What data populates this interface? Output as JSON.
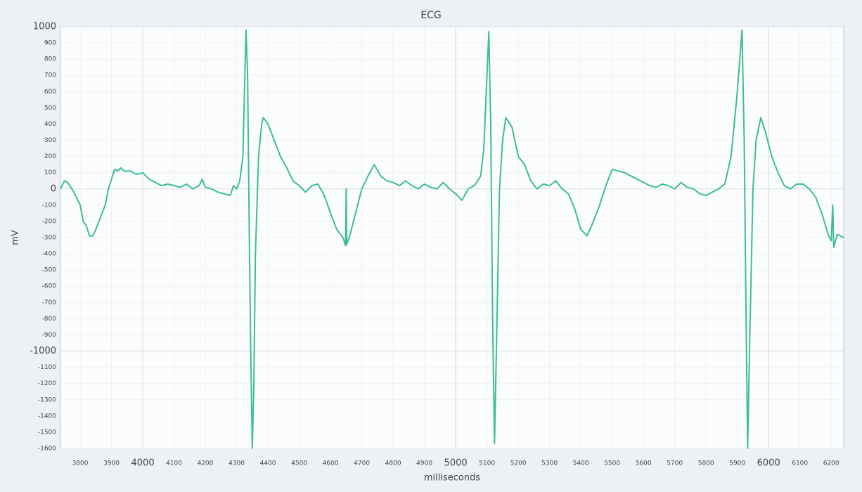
{
  "chart_data": {
    "type": "line",
    "title": "ECG",
    "x_label": "milliseconds",
    "y_label": "mV",
    "xlim": [
      3737,
      6240
    ],
    "ylim": [
      -1600,
      1000
    ],
    "grid": true,
    "xticks": [
      3800,
      3900,
      4000,
      4100,
      4200,
      4300,
      4400,
      4500,
      4600,
      4700,
      4800,
      4900,
      5000,
      5100,
      5200,
      5300,
      5400,
      5500,
      5600,
      5700,
      5800,
      5900,
      6000,
      6100,
      6200
    ],
    "yticks": [
      1000,
      900,
      800,
      700,
      600,
      500,
      400,
      300,
      200,
      100,
      0,
      -100,
      -200,
      -300,
      -400,
      -500,
      -600,
      -700,
      -800,
      -900,
      -1000,
      -1100,
      -1200,
      -1300,
      -1400,
      -1500,
      -1600
    ],
    "x": [
      3737,
      3750,
      3760,
      3780,
      3800,
      3810,
      3820,
      3830,
      3840,
      3850,
      3860,
      3870,
      3880,
      3890,
      3900,
      3910,
      3920,
      3930,
      3940,
      3960,
      3980,
      4000,
      4020,
      4040,
      4060,
      4080,
      4100,
      4120,
      4140,
      4160,
      4180,
      4190,
      4200,
      4220,
      4240,
      4260,
      4280,
      4290,
      4300,
      4310,
      4320,
      4325,
      4330,
      4335,
      4340,
      4345,
      4350,
      4355,
      4360,
      4370,
      4380,
      4385,
      4400,
      4420,
      4440,
      4460,
      4480,
      4500,
      4520,
      4540,
      4560,
      4580,
      4600,
      4620,
      4640,
      4648,
      4650,
      4652,
      4660,
      4680,
      4700,
      4720,
      4740,
      4760,
      4780,
      4800,
      4820,
      4840,
      4860,
      4880,
      4900,
      4920,
      4940,
      4960,
      4980,
      5000,
      5020,
      5040,
      5060,
      5080,
      5090,
      5100,
      5106,
      5112,
      5118,
      5124,
      5130,
      5140,
      5150,
      5160,
      5180,
      5200,
      5220,
      5240,
      5260,
      5280,
      5300,
      5320,
      5340,
      5360,
      5380,
      5400,
      5420,
      5440,
      5460,
      5480,
      5500,
      5520,
      5540,
      5560,
      5580,
      5600,
      5620,
      5640,
      5660,
      5680,
      5700,
      5720,
      5740,
      5760,
      5780,
      5800,
      5820,
      5840,
      5860,
      5880,
      5900,
      5915,
      5922,
      5928,
      5933,
      5940,
      5950,
      5960,
      5975,
      5990,
      6010,
      6030,
      6050,
      6070,
      6090,
      6110,
      6130,
      6150,
      6170,
      6190,
      6200,
      6205,
      6208,
      6220,
      6240
    ],
    "series": [
      {
        "name": "ECG",
        "color": "#3dbd96",
        "values": [
          0,
          50,
          40,
          -20,
          -100,
          -200,
          -230,
          -290,
          -290,
          -250,
          -200,
          -150,
          -100,
          0,
          60,
          120,
          110,
          130,
          110,
          110,
          90,
          100,
          60,
          40,
          20,
          30,
          20,
          10,
          30,
          0,
          20,
          60,
          10,
          0,
          -20,
          -30,
          -40,
          20,
          0,
          50,
          200,
          600,
          980,
          700,
          -200,
          -1000,
          -1600,
          -1200,
          -400,
          200,
          400,
          440,
          400,
          300,
          200,
          130,
          50,
          20,
          -20,
          20,
          30,
          -40,
          -150,
          -250,
          -300,
          -350,
          0,
          -340,
          -300,
          -150,
          0,
          80,
          150,
          80,
          50,
          40,
          20,
          50,
          20,
          0,
          30,
          10,
          0,
          40,
          0,
          -30,
          -70,
          0,
          20,
          80,
          250,
          700,
          970,
          400,
          -800,
          -1570,
          -1000,
          0,
          300,
          440,
          380,
          200,
          150,
          50,
          0,
          30,
          20,
          50,
          0,
          -30,
          -120,
          -250,
          -290,
          -200,
          -100,
          20,
          120,
          110,
          100,
          80,
          60,
          40,
          20,
          10,
          30,
          20,
          0,
          40,
          10,
          0,
          -30,
          -40,
          -20,
          0,
          30,
          200,
          600,
          980,
          300,
          -800,
          -1600,
          -900,
          0,
          300,
          440,
          350,
          200,
          100,
          20,
          0,
          30,
          30,
          0,
          -50,
          -150,
          -280,
          -320,
          -100,
          -360,
          -280,
          -300
        ]
      }
    ]
  }
}
